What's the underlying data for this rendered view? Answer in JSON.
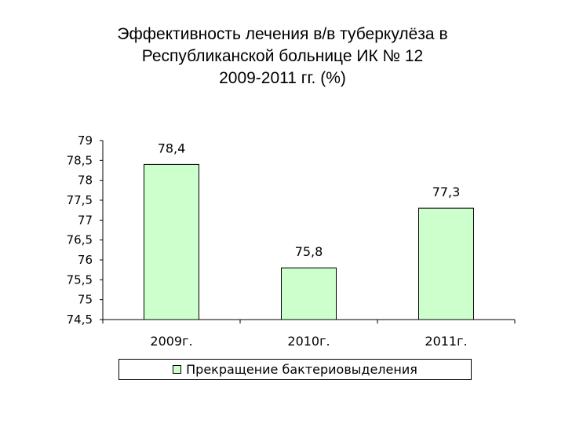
{
  "title": {
    "line1": "Эффективность лечения в/в туберкулёза в",
    "line2": "Республиканской больнице ИК № 12",
    "line3": "2009-2011 гг. (%)"
  },
  "chart_data": {
    "type": "bar",
    "categories": [
      "2009г.",
      "2010г.",
      "2011г."
    ],
    "series": [
      {
        "name": "Прекращение бактериовыделения",
        "values": [
          78.4,
          75.8,
          77.3
        ],
        "data_labels": [
          "78,4",
          "75,8",
          "77,3"
        ]
      }
    ],
    "ylim": [
      74.5,
      79
    ],
    "y_ticks": [
      "74,5",
      "75",
      "75,5",
      "76",
      "76,5",
      "77",
      "77,5",
      "78",
      "78,5",
      "79"
    ],
    "grid": false,
    "legend_position": "bottom",
    "colors": {
      "bar_fill": "#ccffcc",
      "bar_stroke": "#000000"
    }
  }
}
